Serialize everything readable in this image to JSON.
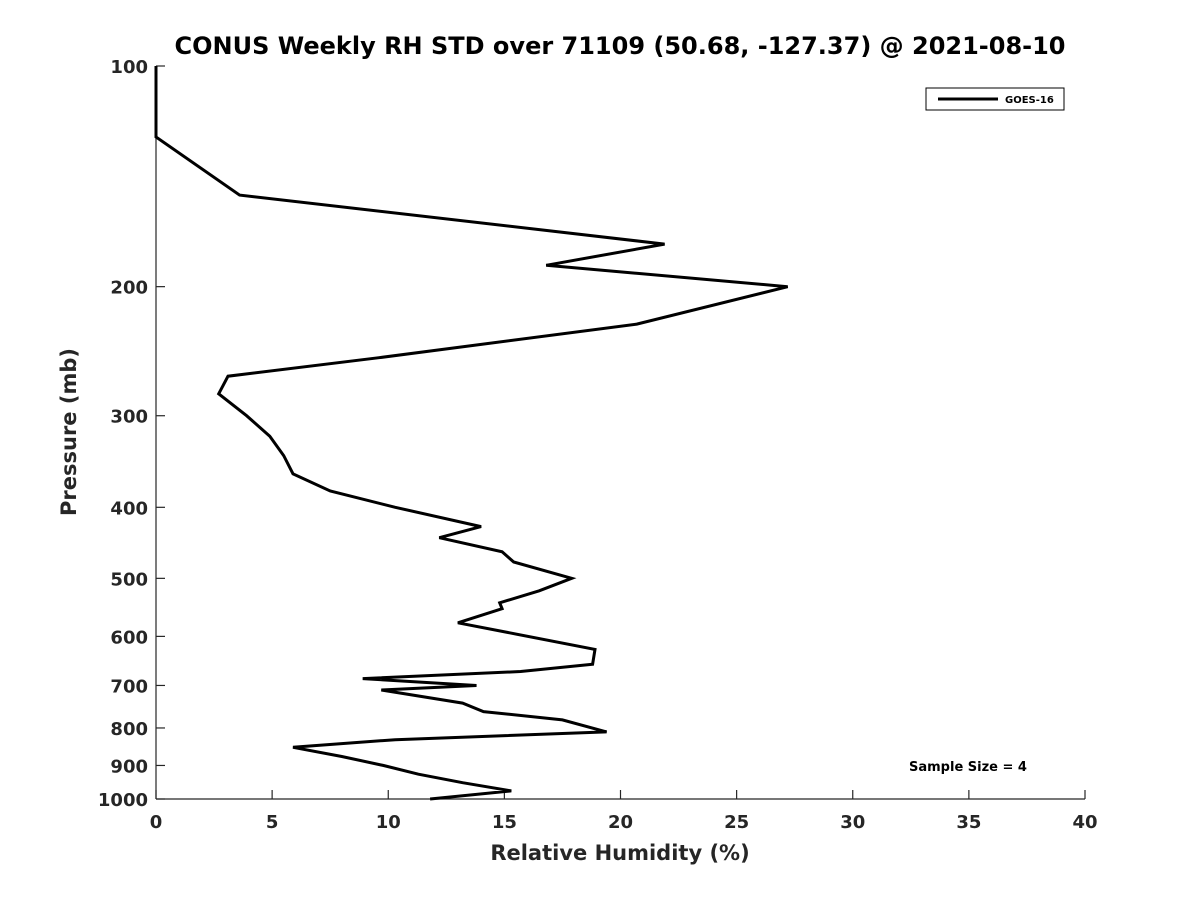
{
  "chart_data": {
    "type": "line",
    "title": "CONUS Weekly RH STD over 71109 (50.68, -127.37) @ 2021-08-10",
    "xlabel": "Relative Humidity (%)",
    "ylabel": "Pressure (mb)",
    "xlim": [
      0,
      40
    ],
    "ylim": [
      100,
      1000
    ],
    "y_scale": "log",
    "y_reversed": true,
    "x_ticks": [
      "0",
      "5",
      "10",
      "15",
      "20",
      "25",
      "30",
      "35",
      "40"
    ],
    "y_ticks": [
      "100",
      "200",
      "300",
      "400",
      "500",
      "600",
      "700",
      "800",
      "900",
      "1000"
    ],
    "grid": false,
    "legend_position": "top-right",
    "series": [
      {
        "name": "GOES-16",
        "color": "#000000",
        "points": [
          [
            0.0,
            100
          ],
          [
            0.0,
            125
          ],
          [
            3.6,
            150
          ],
          [
            21.9,
            175
          ],
          [
            16.8,
            187
          ],
          [
            27.2,
            200
          ],
          [
            20.7,
            225
          ],
          [
            9.6,
            250
          ],
          [
            3.1,
            265
          ],
          [
            2.7,
            280
          ],
          [
            3.9,
            300
          ],
          [
            4.9,
            320
          ],
          [
            5.5,
            340
          ],
          [
            5.9,
            360
          ],
          [
            7.5,
            380
          ],
          [
            10.3,
            400
          ],
          [
            14.0,
            425
          ],
          [
            12.2,
            440
          ],
          [
            14.9,
            460
          ],
          [
            15.4,
            475
          ],
          [
            17.9,
            500
          ],
          [
            16.5,
            520
          ],
          [
            14.8,
            540
          ],
          [
            14.9,
            550
          ],
          [
            13.0,
            575
          ],
          [
            18.9,
            625
          ],
          [
            18.8,
            655
          ],
          [
            15.7,
            670
          ],
          [
            8.9,
            685
          ],
          [
            13.8,
            700
          ],
          [
            9.7,
            710
          ],
          [
            13.2,
            740
          ],
          [
            14.1,
            760
          ],
          [
            17.5,
            780
          ],
          [
            19.4,
            810
          ],
          [
            10.3,
            830
          ],
          [
            5.9,
            850
          ],
          [
            8.0,
            875
          ],
          [
            9.8,
            900
          ],
          [
            11.3,
            925
          ],
          [
            13.2,
            950
          ],
          [
            15.3,
            975
          ],
          [
            11.8,
            1000
          ]
        ]
      }
    ],
    "annotations": [
      {
        "text": "Sample Size = 4",
        "position": "bottom-right"
      }
    ]
  }
}
